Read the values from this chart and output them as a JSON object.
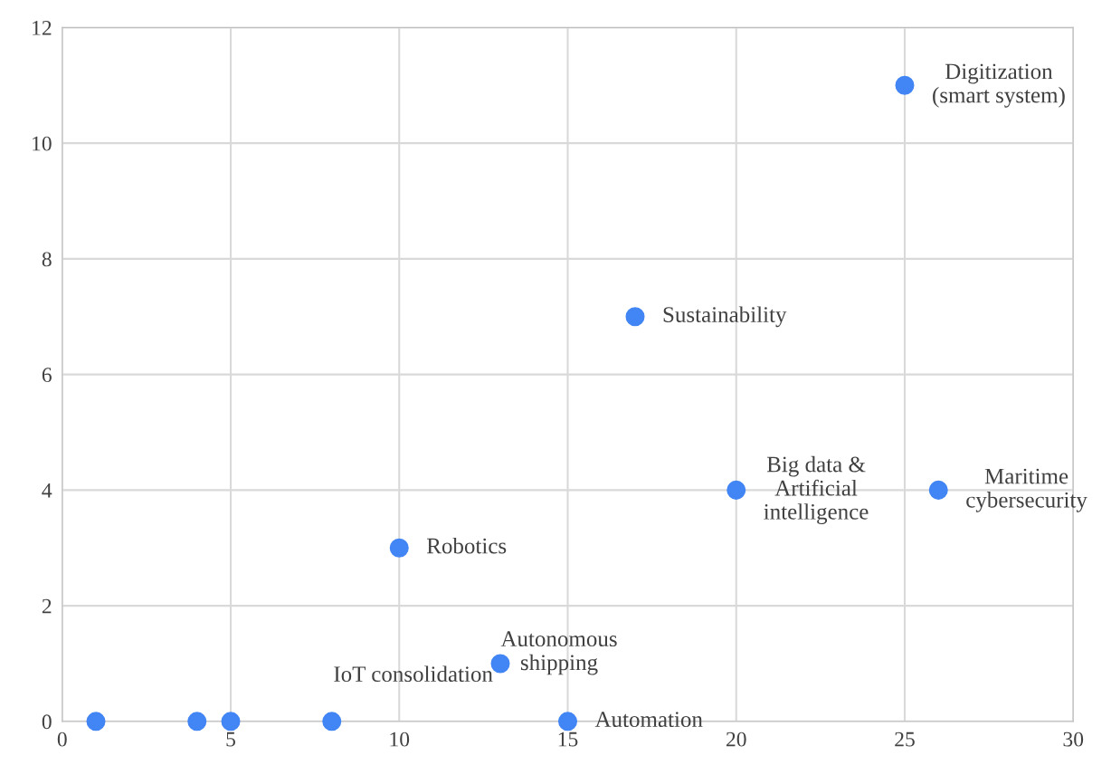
{
  "chart_data": {
    "type": "scatter",
    "x": [
      1,
      4,
      5,
      8,
      10,
      13,
      15,
      17,
      20,
      25,
      26
    ],
    "series": [
      {
        "color": "#4285f4",
        "values": [
          0,
          0,
          0,
          0,
          3,
          1,
          0,
          7,
          4,
          11,
          4
        ]
      }
    ],
    "xlim": [
      0,
      30
    ],
    "xticks": [
      0,
      5,
      10,
      15,
      20,
      25,
      30
    ],
    "ylim": [
      0,
      12
    ],
    "yticks": [
      0,
      2,
      4,
      6,
      8,
      10,
      12
    ],
    "grid": true,
    "marker": "circle",
    "annotations": [
      {
        "text": "IoT consolidation",
        "x": 8,
        "y": 0
      },
      {
        "text": "Robotics",
        "x": 10,
        "y": 3
      },
      {
        "text": "Autonomous\nshipping",
        "x": 13,
        "y": 1
      },
      {
        "text": "Automation",
        "x": 15,
        "y": 0
      },
      {
        "text": "Sustainability",
        "x": 17,
        "y": 7
      },
      {
        "text": "Big data &\nArtificial\nintelligence",
        "x": 20,
        "y": 4
      },
      {
        "text": "Digitization\n(smart system)",
        "x": 25,
        "y": 11
      },
      {
        "text": "Maritime\ncybersecurity",
        "x": 26,
        "y": 4
      }
    ]
  }
}
